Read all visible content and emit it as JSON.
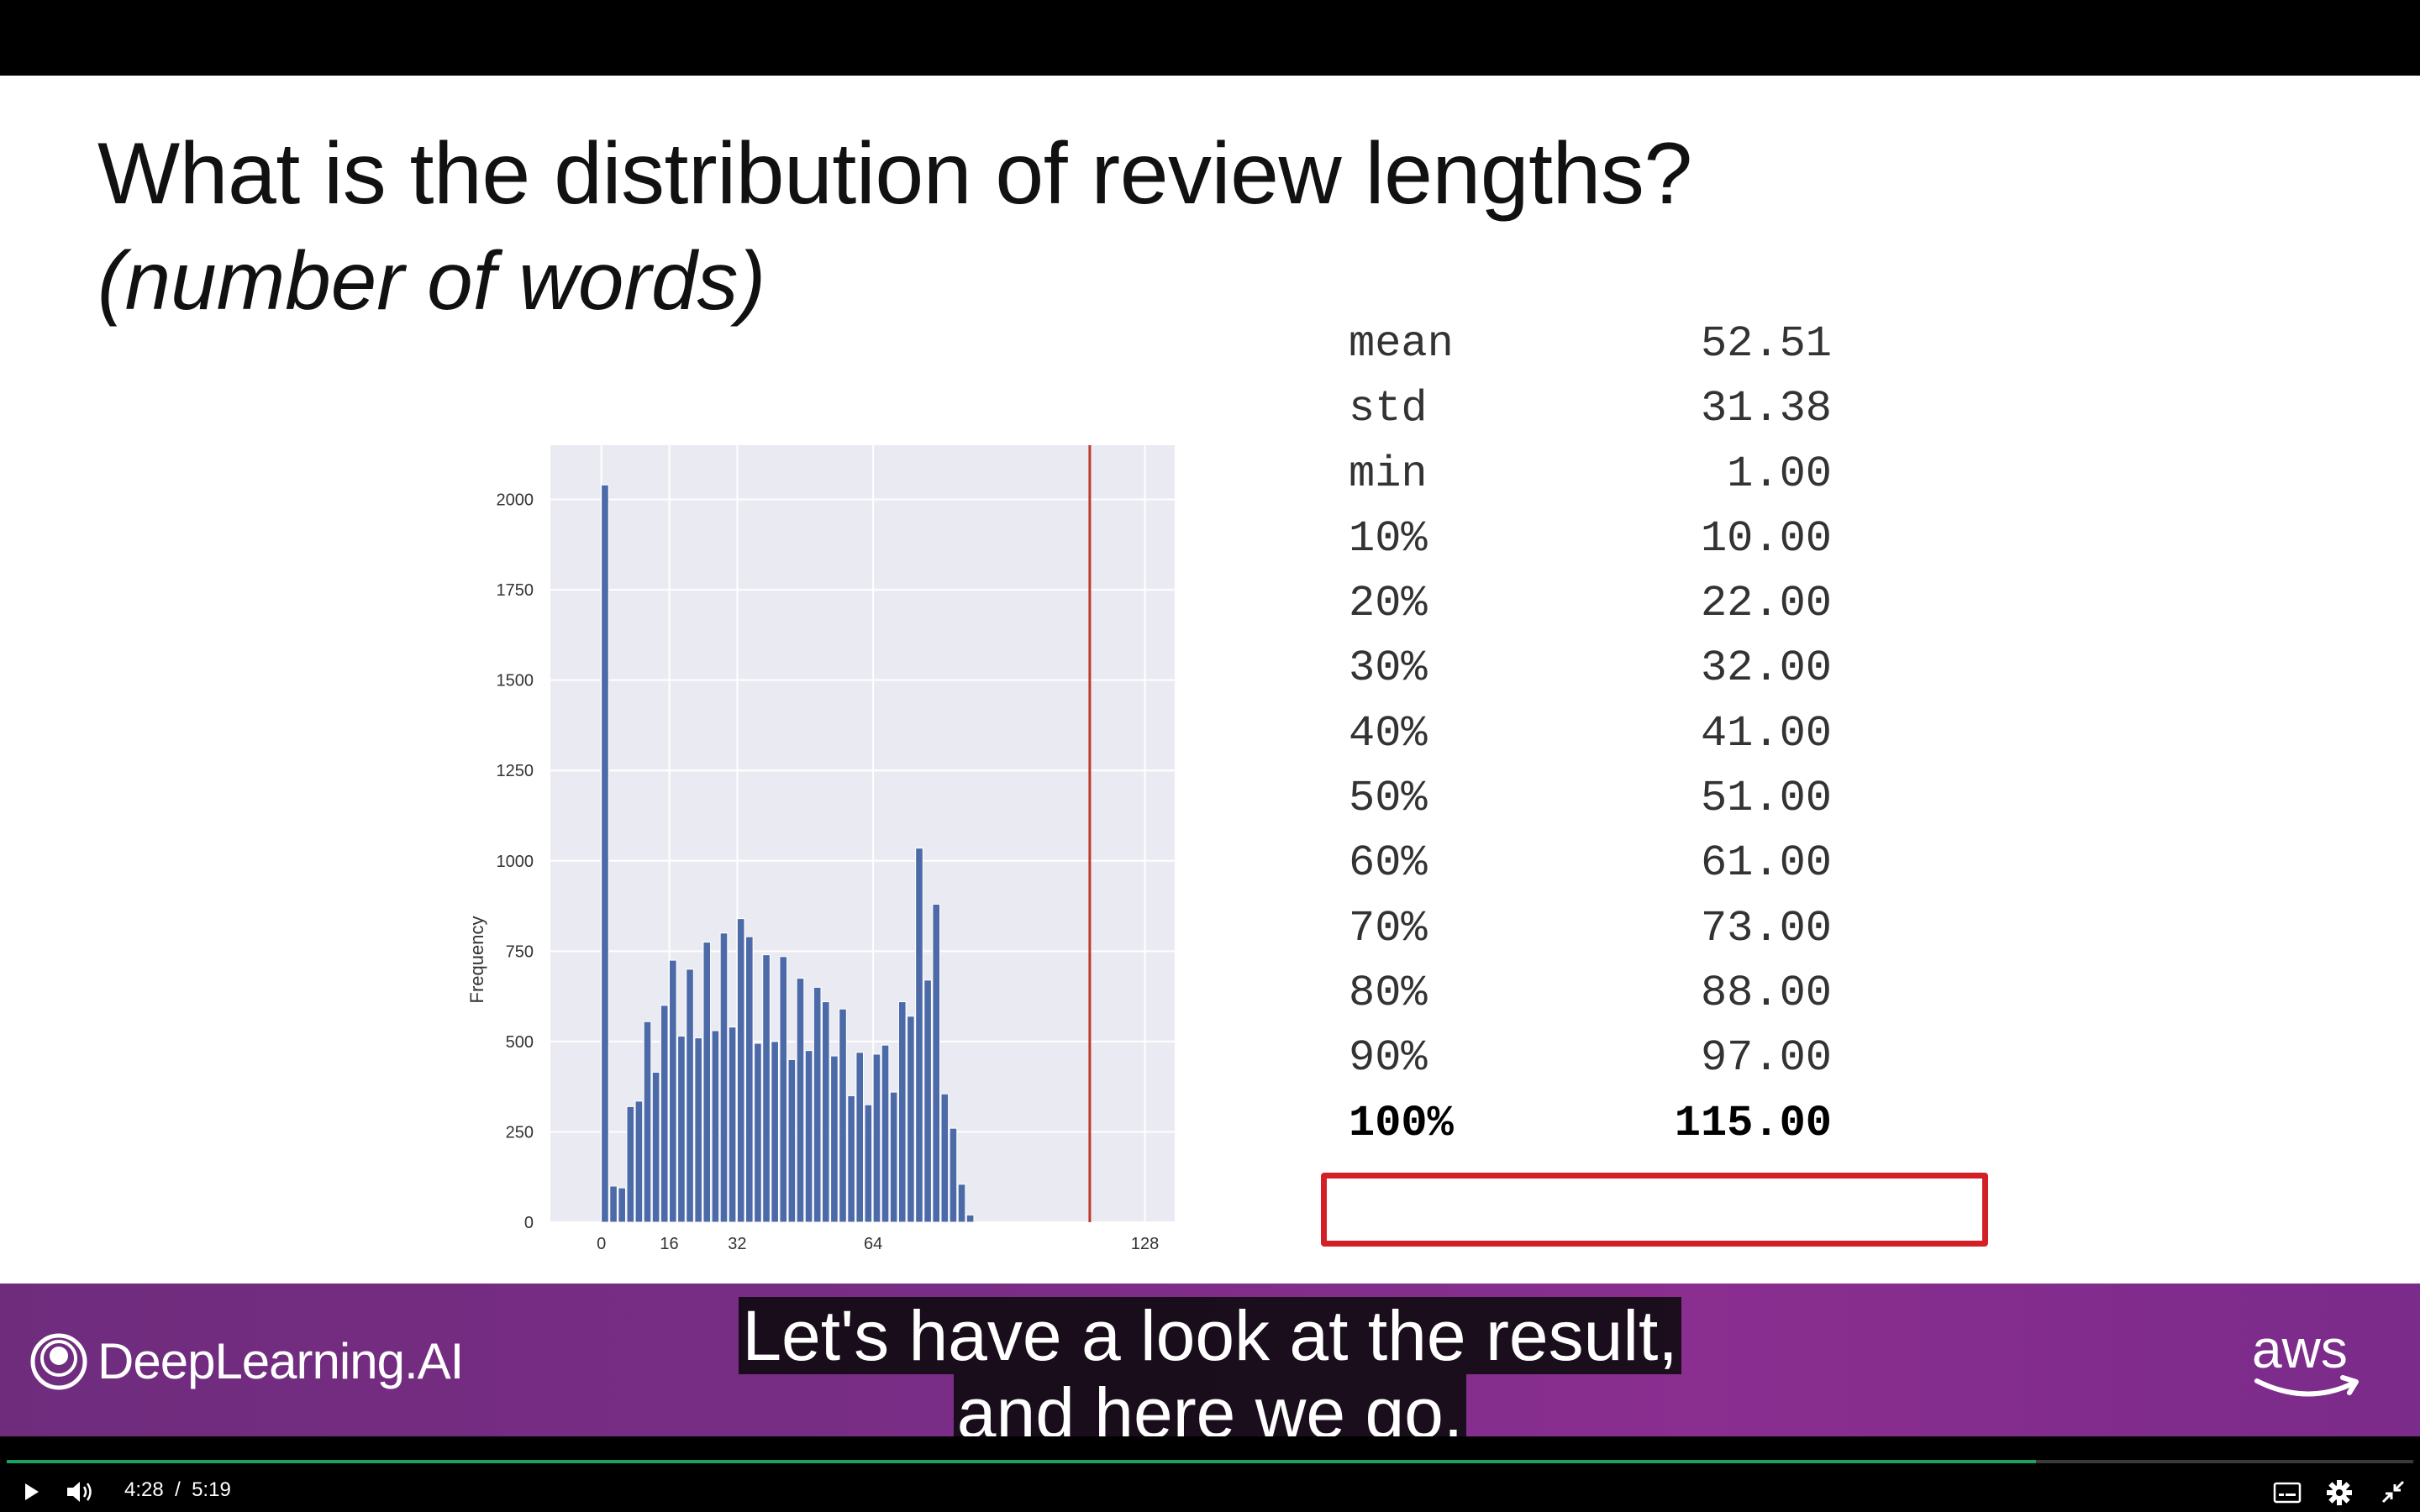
{
  "slide": {
    "title": "What is the distribution of review lengths?",
    "subtitle": "(number of words)"
  },
  "chart_data": {
    "type": "bar",
    "ylabel": "Frequency",
    "xlabel": "",
    "xticks": [
      0,
      16,
      32,
      64,
      128
    ],
    "yticks": [
      0,
      250,
      500,
      750,
      1000,
      1250,
      1500,
      1750,
      2000
    ],
    "xlim": [
      -12,
      135
    ],
    "ylim": [
      0,
      2150
    ],
    "bin_width": 2,
    "bins_start": [
      0,
      2,
      4,
      6,
      8,
      10,
      12,
      14,
      16,
      18,
      20,
      22,
      24,
      26,
      28,
      30,
      32,
      34,
      36,
      38,
      40,
      42,
      44,
      46,
      48,
      50,
      52,
      54,
      56,
      58,
      60,
      62,
      64,
      66,
      68,
      70,
      72,
      74,
      76,
      78,
      80,
      82,
      84,
      86,
      88,
      90,
      92,
      94,
      96,
      98,
      100,
      102,
      104,
      106,
      108,
      110,
      112,
      114
    ],
    "values": [
      2040,
      100,
      95,
      320,
      335,
      555,
      415,
      600,
      725,
      515,
      700,
      510,
      775,
      530,
      800,
      540,
      840,
      790,
      495,
      740,
      500,
      735,
      450,
      675,
      475,
      650,
      610,
      460,
      590,
      350,
      470,
      325,
      465,
      490,
      360,
      610,
      570,
      1035,
      670,
      880,
      355,
      260,
      105,
      20,
      0,
      0,
      0,
      0,
      0,
      0,
      0,
      0,
      0,
      0,
      0,
      0,
      0,
      0
    ],
    "vline": 115,
    "vline_color": "#c0392b",
    "bar_color": "#4c6aa8",
    "background": "#eaeaf2",
    "grid": true
  },
  "stats": [
    {
      "label": "mean",
      "value": "52.51"
    },
    {
      "label": "std",
      "value": "31.38"
    },
    {
      "label": "min",
      "value": "1.00"
    },
    {
      "label": "10%",
      "value": "10.00"
    },
    {
      "label": "20%",
      "value": "22.00"
    },
    {
      "label": "30%",
      "value": "32.00"
    },
    {
      "label": "40%",
      "value": "41.00"
    },
    {
      "label": "50%",
      "value": "51.00"
    },
    {
      "label": "60%",
      "value": "61.00"
    },
    {
      "label": "70%",
      "value": "73.00"
    },
    {
      "label": "80%",
      "value": "88.00"
    },
    {
      "label": "90%",
      "value": "97.00"
    },
    {
      "label": "100%",
      "value": "115.00"
    }
  ],
  "branding": {
    "left_logo_text": "DeepLearning.AI",
    "right_logo_text": "aws"
  },
  "captions": {
    "line1": "Let's have a look at the result,",
    "line2": "and here we go."
  },
  "player": {
    "current_time": "4:28",
    "separator": "/",
    "duration": "5:19",
    "progress": 0.8433,
    "icons": [
      "play-icon",
      "volume-icon",
      "captions-icon",
      "settings-icon",
      "exit-fullscreen-icon"
    ]
  }
}
